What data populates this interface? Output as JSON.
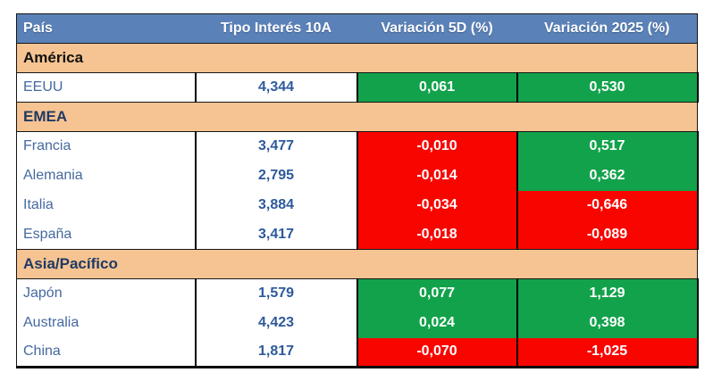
{
  "colors": {
    "header-bg": "#5B82B8",
    "header-text": "#FFFFFF",
    "section-bg": "#F6C492",
    "navy": "#1F3A64",
    "country-text": "#45699F",
    "rate-text": "#2D5A9B",
    "up-bg": "#12A24B",
    "down-bg": "#F90500",
    "cell-text": "#FFFFFF"
  },
  "table": {
    "columns": [
      "País",
      "Tipo Interés 10A",
      "Variación 5D (%)",
      "Variación 2025 (%)"
    ],
    "sections": [
      {
        "label": "América",
        "tone": "black",
        "rows": [
          {
            "country": "EEUU",
            "rate": "4,344",
            "var5d": "0,061",
            "var5d_state": "up",
            "var2025": "0,530",
            "var2025_state": "up"
          }
        ]
      },
      {
        "label": "EMEA",
        "tone": "navy",
        "rows": [
          {
            "country": "Francia",
            "rate": "3,477",
            "var5d": "-0,010",
            "var5d_state": "down",
            "var2025": "0,517",
            "var2025_state": "up"
          },
          {
            "country": "Alemania",
            "rate": "2,795",
            "var5d": "-0,014",
            "var5d_state": "down",
            "var2025": "0,362",
            "var2025_state": "up"
          },
          {
            "country": "Italia",
            "rate": "3,884",
            "var5d": "-0,034",
            "var5d_state": "down",
            "var2025": "-0,646",
            "var2025_state": "down"
          },
          {
            "country": "España",
            "rate": "3,417",
            "var5d": "-0,018",
            "var5d_state": "down",
            "var2025": "-0,089",
            "var2025_state": "down"
          }
        ]
      },
      {
        "label": "Asia/Pacífico",
        "tone": "navy",
        "rows": [
          {
            "country": "Japón",
            "rate": "1,579",
            "var5d": "0,077",
            "var5d_state": "up",
            "var2025": "1,129",
            "var2025_state": "up"
          },
          {
            "country": "Australia",
            "rate": "4,423",
            "var5d": "0,024",
            "var5d_state": "up",
            "var2025": "0,398",
            "var2025_state": "up"
          },
          {
            "country": "China",
            "rate": "1,817",
            "var5d": "-0,070",
            "var5d_state": "down",
            "var2025": "-1,025",
            "var2025_state": "down"
          }
        ]
      }
    ]
  },
  "chart_data": {
    "type": "table",
    "columns": [
      "País",
      "Tipo Interés 10A",
      "Variación 5D (%)",
      "Variación 2025 (%)"
    ],
    "rows": [
      {
        "section": "América",
        "country": "EEUU",
        "tipo_interes_10a": 4.344,
        "variacion_5d_pct": 0.061,
        "variacion_2025_pct": 0.53
      },
      {
        "section": "EMEA",
        "country": "Francia",
        "tipo_interes_10a": 3.477,
        "variacion_5d_pct": -0.01,
        "variacion_2025_pct": 0.517
      },
      {
        "section": "EMEA",
        "country": "Alemania",
        "tipo_interes_10a": 2.795,
        "variacion_5d_pct": -0.014,
        "variacion_2025_pct": 0.362
      },
      {
        "section": "EMEA",
        "country": "Italia",
        "tipo_interes_10a": 3.884,
        "variacion_5d_pct": -0.034,
        "variacion_2025_pct": -0.646
      },
      {
        "section": "EMEA",
        "country": "España",
        "tipo_interes_10a": 3.417,
        "variacion_5d_pct": -0.018,
        "variacion_2025_pct": -0.089
      },
      {
        "section": "Asia/Pacífico",
        "country": "Japón",
        "tipo_interes_10a": 1.579,
        "variacion_5d_pct": 0.077,
        "variacion_2025_pct": 1.129
      },
      {
        "section": "Asia/Pacífico",
        "country": "Australia",
        "tipo_interes_10a": 4.423,
        "variacion_5d_pct": 0.024,
        "variacion_2025_pct": 0.398
      },
      {
        "section": "Asia/Pacífico",
        "country": "China",
        "tipo_interes_10a": 1.817,
        "variacion_5d_pct": -0.07,
        "variacion_2025_pct": -1.025
      }
    ],
    "legend": "green = positive variation, red = negative variation"
  }
}
